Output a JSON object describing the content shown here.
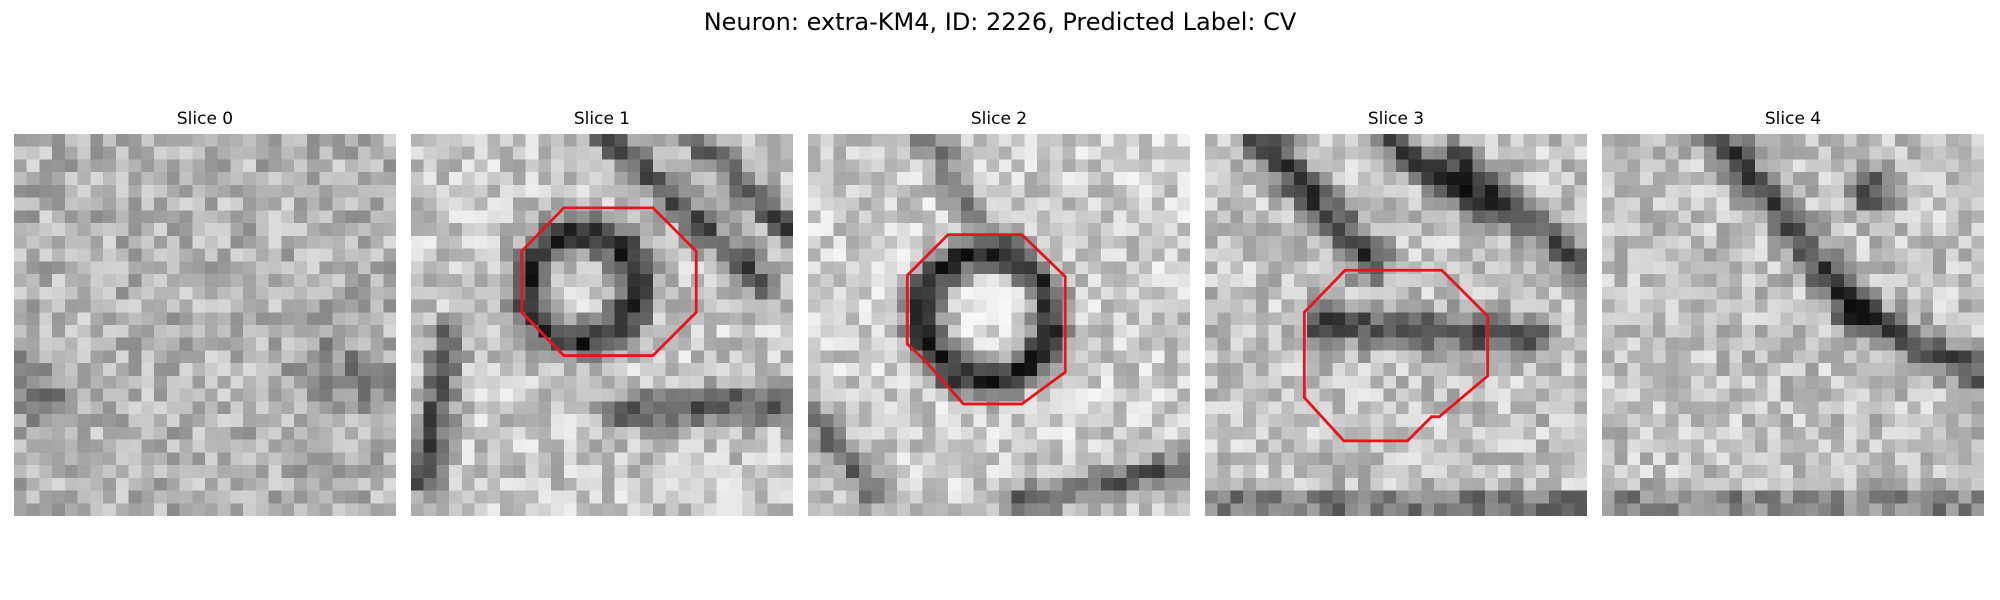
{
  "figure": {
    "title": "Neuron: extra-KM4, ID: 2226, Predicted Label: CV"
  },
  "colors": {
    "contour": "#e8141a",
    "background": "#ffffff"
  },
  "slices": [
    {
      "title": "Slice 0",
      "has_contour": false
    },
    {
      "title": "Slice 1",
      "has_contour": true
    },
    {
      "title": "Slice 2",
      "has_contour": true
    },
    {
      "title": "Slice 3",
      "has_contour": true
    },
    {
      "title": "Slice 4",
      "has_contour": false
    }
  ]
}
